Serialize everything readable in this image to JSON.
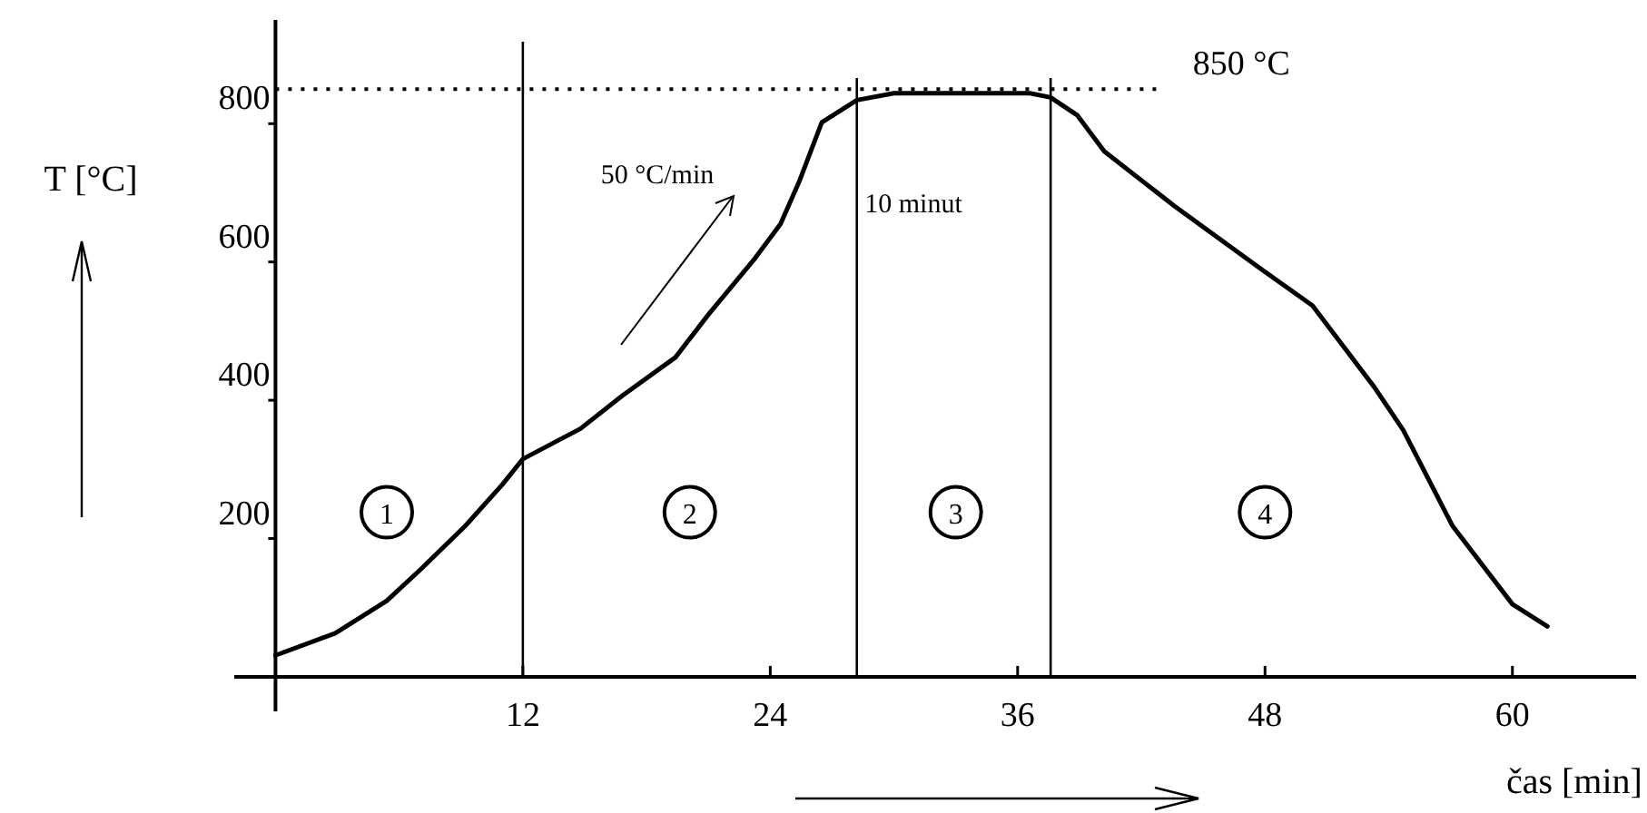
{
  "chart_data": {
    "type": "line",
    "xlabel": "čas [min]",
    "ylabel": "T [°C]",
    "xlim": [
      -2,
      66
    ],
    "ylim": [
      -50,
      950
    ],
    "xticks": [
      12,
      24,
      36,
      48,
      60
    ],
    "yticks": [
      200,
      400,
      600,
      800
    ],
    "x": [
      0,
      2.9,
      5.4,
      7.1,
      9.2,
      11,
      12,
      14.8,
      16.8,
      19.4,
      21,
      23.2,
      24.5,
      25.4,
      26.5,
      28.2,
      30,
      36.6,
      37.6,
      38.9,
      40.2,
      43.6,
      47.7,
      50.3,
      53.3,
      54.7,
      57.1,
      60,
      61.7
    ],
    "series": [
      {
        "color": "#000000",
        "values": [
          31,
          63,
          110,
          157,
          218,
          278,
          315,
          359,
          406,
          462,
          524,
          603,
          655,
          716,
          802,
          834,
          844,
          844,
          838,
          812,
          760,
          681,
          592,
          537,
          419,
          357,
          218,
          105,
          73
        ]
      }
    ],
    "ref_lines": [
      {
        "axis": "x",
        "value": 12
      },
      {
        "axis": "x",
        "value": 28.2
      },
      {
        "axis": "x",
        "value": 37.6
      },
      {
        "axis": "y",
        "value": 850,
        "label": "850 °C",
        "line_style": "dotted"
      }
    ],
    "annotations": [
      "50 °C/min",
      "10 minut",
      {
        "text": "1",
        "x": 5.4,
        "y": 238
      },
      {
        "text": "2",
        "x": 20.1,
        "y": 238
      },
      {
        "text": "3",
        "x": 33,
        "y": 238
      },
      {
        "text": "4",
        "x": 48,
        "y": 238
      }
    ],
    "grid": false,
    "marker": "none",
    "line_style": "solid"
  }
}
